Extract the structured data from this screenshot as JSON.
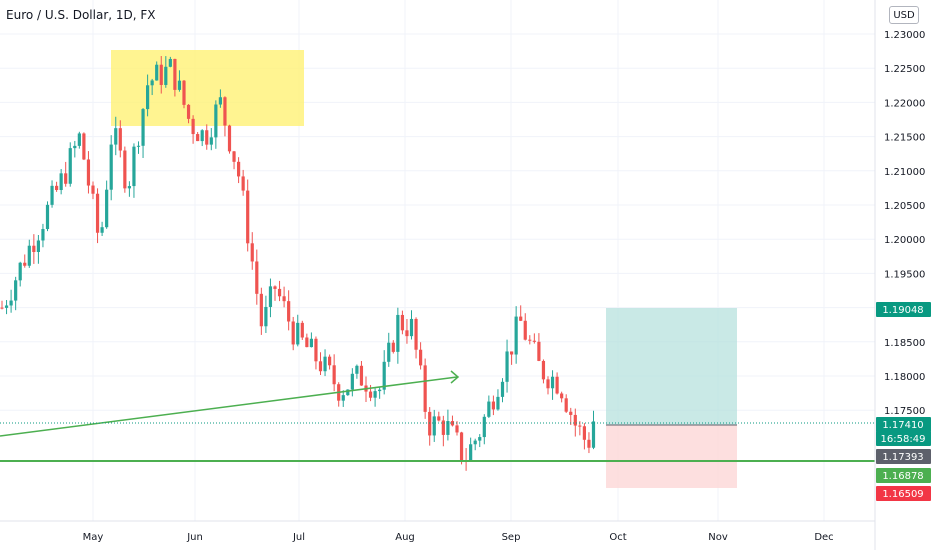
{
  "chart_data": {
    "type": "candlestick",
    "title": "Euro / U.S. Dollar, 1D, FX",
    "currency": "USD",
    "y_ticks": [
      "1.23000",
      "1.22500",
      "1.22000",
      "1.21500",
      "1.21000",
      "1.20500",
      "1.20000",
      "1.19500",
      "1.19000",
      "1.18500",
      "1.18000",
      "1.17500"
    ],
    "ylim": [
      1.1615,
      1.2325
    ],
    "x_ticks": [
      "May",
      "Jun",
      "Jul",
      "Aug",
      "Sep",
      "Oct",
      "Nov",
      "Dec"
    ],
    "price_tags": [
      {
        "name": "take-profit",
        "label": "1.19048",
        "color": "#089981"
      },
      {
        "name": "last-price",
        "label": "1.17410",
        "color": "#089981"
      },
      {
        "name": "countdown",
        "label": "16:58:49",
        "color": "#089981"
      },
      {
        "name": "prev-close",
        "label": "1.17393",
        "color": "#5d606b"
      },
      {
        "name": "support",
        "label": "1.16878",
        "color": "#4caf50"
      },
      {
        "name": "stop-loss",
        "label": "1.16509",
        "color": "#f23645"
      }
    ],
    "colors": {
      "up": "#26a69a",
      "down": "#ef5350",
      "highlight_zone": "#fff176",
      "target_zone": "#b2dfdb",
      "stop_zone": "#fcd7d7",
      "trendline": "#4caf50"
    }
  }
}
